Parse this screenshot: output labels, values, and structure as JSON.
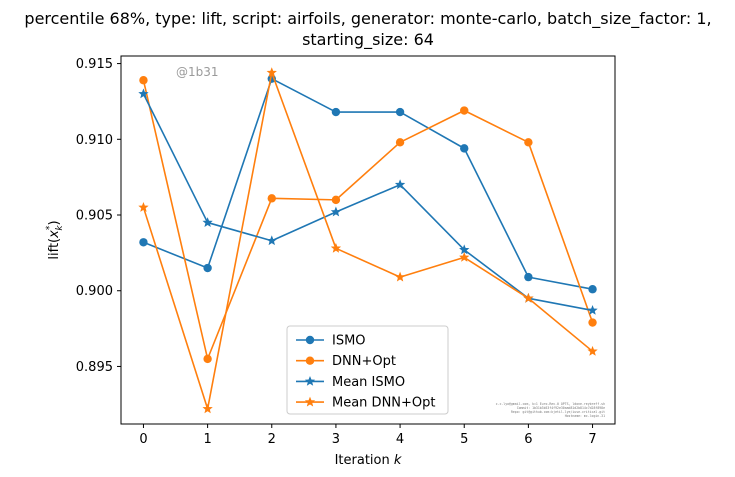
{
  "chart_data": {
    "type": "line",
    "title_lines": [
      "percentile 68%, type: lift, script: airfoils, generator: monte-carlo, batch_size_factor: 1,",
      "starting_size: 64"
    ],
    "xlabel": "Iteration k",
    "ylabel": "lift(x*k)",
    "x": [
      0,
      1,
      2,
      3,
      4,
      5,
      6,
      7
    ],
    "xticks": [
      "0",
      "1",
      "2",
      "3",
      "4",
      "5",
      "6",
      "7"
    ],
    "xlim": [
      -0.35,
      7.35
    ],
    "ylim": [
      0.8912,
      0.9155
    ],
    "yticks": [
      "0.895",
      "0.900",
      "0.905",
      "0.910",
      "0.915"
    ],
    "grid": false,
    "legend_position": "lower-center",
    "watermark": "@1b31",
    "footnote_lines": [
      "c.c.lyo@gmail.com, k=1 Euro-Rev-0 OPTS, ldone.reybreff.sh",
      "Commit: 1b31b3b53f4f92e30aad81d2b814c7d28f898e",
      "Repo: git@github.com:kjetil-lye/iuse-critical.git",
      "Hostname: mc-login-31"
    ],
    "series": [
      {
        "name": "ISMO",
        "color": "#1f77b4",
        "marker": "circle",
        "values": [
          0.9032,
          0.9015,
          0.914,
          0.9118,
          0.9118,
          0.9094,
          0.9009,
          0.9001
        ]
      },
      {
        "name": "DNN+Opt",
        "color": "#ff7f0e",
        "marker": "circle",
        "values": [
          0.9139,
          0.8955,
          0.9061,
          0.906,
          0.9098,
          0.9119,
          0.9098,
          0.8979
        ]
      },
      {
        "name": "Mean ISMO",
        "color": "#1f77b4",
        "marker": "star",
        "values": [
          0.913,
          0.9045,
          0.9033,
          0.9052,
          0.907,
          0.9027,
          0.8995,
          0.8987
        ]
      },
      {
        "name": "Mean DNN+Opt",
        "color": "#ff7f0e",
        "marker": "star",
        "values": [
          0.9055,
          0.8922,
          0.9144,
          0.9028,
          0.9009,
          0.9022,
          0.8995,
          0.896
        ]
      }
    ]
  }
}
